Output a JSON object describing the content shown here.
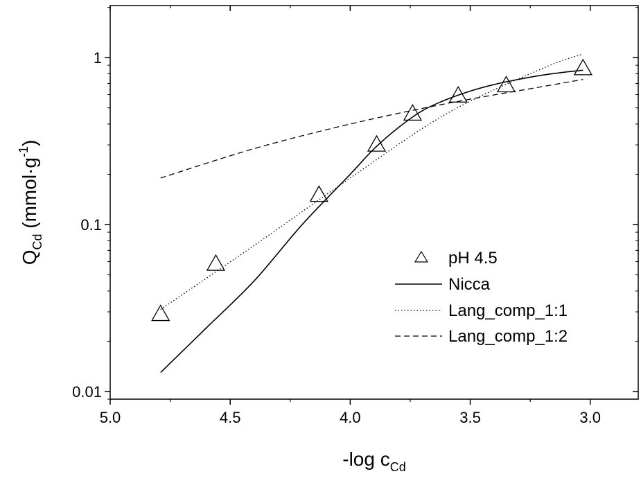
{
  "chart_data": {
    "type": "scatter",
    "xlabel": {
      "main": "-log c",
      "sub": "Cd"
    },
    "ylabel": {
      "main": "Q",
      "sub": "Cd",
      "unit_open": " (mmol·g",
      "sup": "-1",
      "unit_close": ")"
    },
    "x_axis": {
      "min": 2.8,
      "max": 5.0,
      "reversed": true,
      "ticks": [
        5.0,
        4.5,
        4.0,
        3.5,
        3.0
      ],
      "tick_labels": [
        "5.0",
        "4.5",
        "4.0",
        "3.5",
        "3.0"
      ]
    },
    "y_axis": {
      "scale": "log",
      "min": 0.009,
      "max": 2.05,
      "ticks": [
        0.01,
        0.1,
        1
      ],
      "tick_labels": [
        "0.01",
        "0.1",
        "1"
      ]
    },
    "grid": false,
    "legend_position": "center-right",
    "legend": [
      {
        "label": "pH 4.5",
        "style": "triangle-marker"
      },
      {
        "label": "Nicca",
        "style": "solid"
      },
      {
        "label": "Lang_comp_1:1",
        "style": "dotted"
      },
      {
        "label": "Lang_comp_1:2",
        "style": "dashed"
      }
    ],
    "series": [
      {
        "name": "pH 4.5",
        "kind": "points",
        "x": [
          4.79,
          4.56,
          4.13,
          3.89,
          3.74,
          3.55,
          3.35,
          3.03
        ],
        "y": [
          0.029,
          0.058,
          0.15,
          0.3,
          0.46,
          0.59,
          0.68,
          0.86
        ]
      },
      {
        "name": "Nicca",
        "kind": "line",
        "dash": "solid",
        "x": [
          4.79,
          4.6,
          4.4,
          4.2,
          4.0,
          3.9,
          3.8,
          3.7,
          3.6,
          3.5,
          3.4,
          3.3,
          3.2,
          3.1,
          3.03
        ],
        "y": [
          0.013,
          0.024,
          0.046,
          0.1,
          0.2,
          0.285,
          0.38,
          0.48,
          0.56,
          0.63,
          0.69,
          0.74,
          0.785,
          0.82,
          0.84
        ]
      },
      {
        "name": "Lang_comp_1:1",
        "kind": "line",
        "dash": "dotted",
        "x": [
          4.79,
          4.4,
          4.0,
          3.6,
          3.2,
          3.03
        ],
        "y": [
          0.031,
          0.075,
          0.19,
          0.46,
          0.86,
          1.05
        ]
      },
      {
        "name": "Lang_comp_1:2",
        "kind": "line",
        "dash": "dashed",
        "x": [
          4.79,
          4.4,
          4.0,
          3.6,
          3.2,
          3.03
        ],
        "y": [
          0.19,
          0.285,
          0.4,
          0.53,
          0.67,
          0.74
        ]
      }
    ]
  }
}
